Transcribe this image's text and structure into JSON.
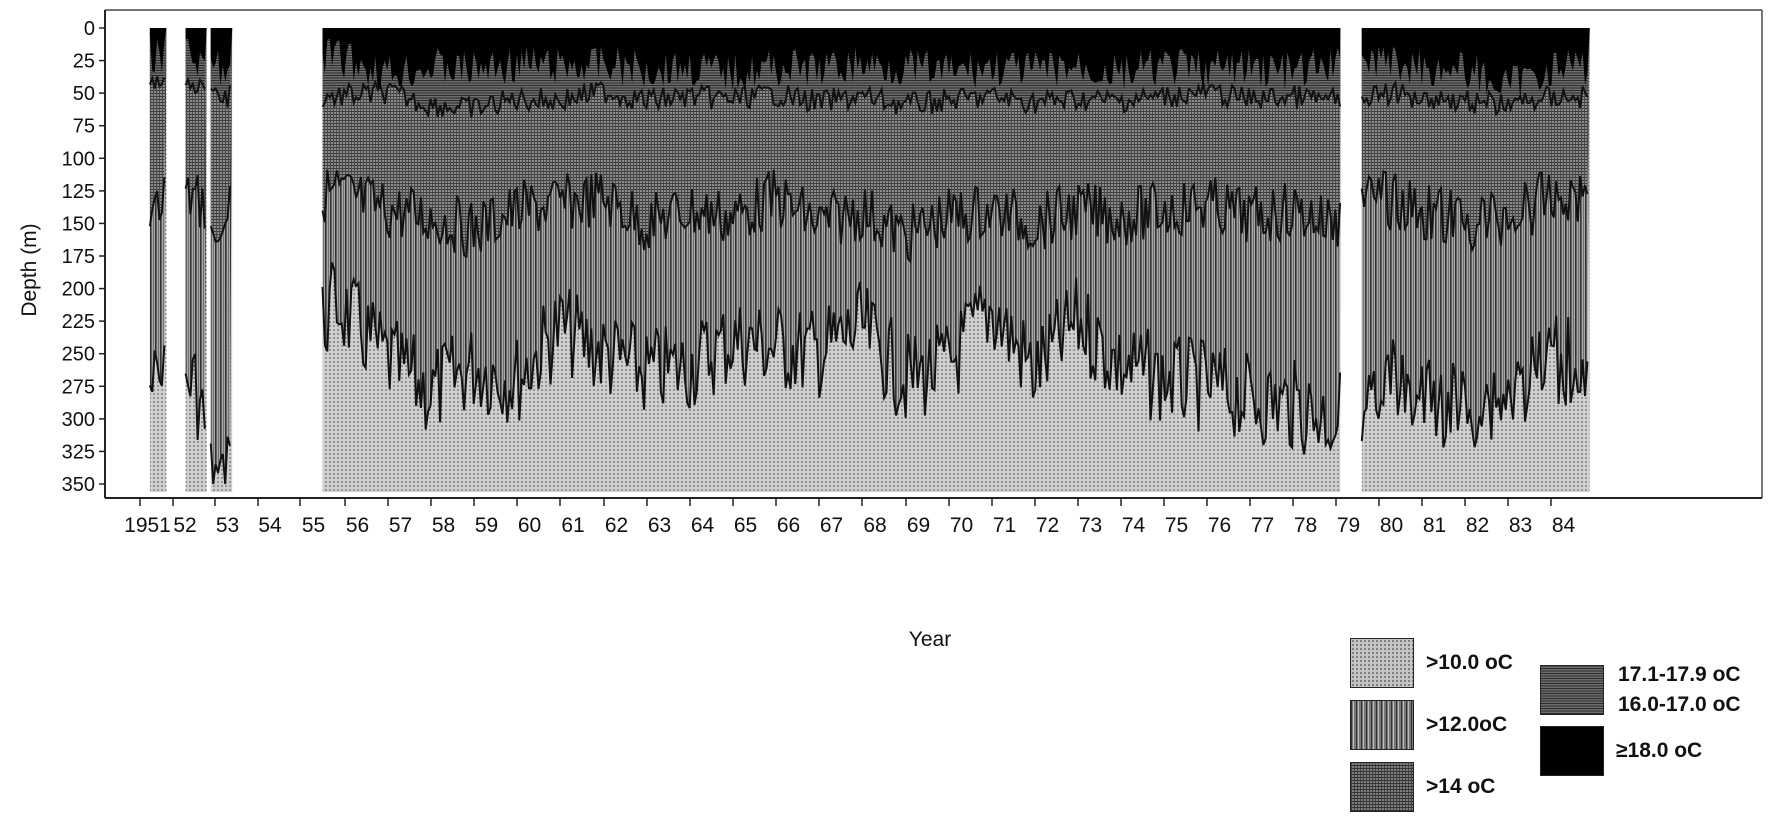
{
  "chart_data": {
    "type": "heatmap",
    "title": "",
    "xlabel": "Year",
    "ylabel": "Depth (m)",
    "ylim": [
      350,
      0
    ],
    "y_ticks": [
      "0",
      "25",
      "50",
      "75",
      "100",
      "125",
      "150",
      "175",
      "200",
      "225",
      "250",
      "275",
      "300",
      "325",
      "350"
    ],
    "x_tick_labels": [
      "1951",
      "52",
      "53",
      "54",
      "55",
      "56",
      "57",
      "58",
      "59",
      "60",
      "61",
      "62",
      "63",
      "64",
      "65",
      "66",
      "67",
      "68",
      "69",
      "70",
      "71",
      "72",
      "73",
      "74",
      "75",
      "76",
      "77",
      "78",
      "79",
      "80",
      "81",
      "82",
      "83",
      "84"
    ],
    "data_coverage": [
      {
        "from": 1951.3,
        "to": 1951.8
      },
      {
        "from": 1952.3,
        "to": 1952.8
      },
      {
        "from": 1952.9,
        "to": 1953.4
      },
      {
        "from": 1955.5,
        "to": 1979.1
      },
      {
        "from": 1979.6,
        "to": 1984.9
      }
    ],
    "isotherm_depths": {
      "years": [
        1951.5,
        1952.5,
        1953.1,
        1955.8,
        1957,
        1958,
        1959,
        1960,
        1961,
        1962,
        1963,
        1964,
        1965,
        1966,
        1967,
        1968,
        1969,
        1970,
        1971,
        1972,
        1973,
        1974,
        1975,
        1976,
        1977,
        1978,
        1979,
        1980,
        1981,
        1982,
        1983,
        1984
      ],
      "t18": [
        20,
        22,
        30,
        22,
        35,
        30,
        32,
        28,
        30,
        28,
        32,
        30,
        35,
        30,
        32,
        28,
        30,
        34,
        30,
        33,
        30,
        35,
        30,
        32,
        30,
        34,
        30,
        25,
        30,
        32,
        45,
        30
      ],
      "t14": [
        70,
        72,
        85,
        85,
        80,
        95,
        100,
        88,
        90,
        78,
        90,
        85,
        88,
        82,
        92,
        85,
        95,
        90,
        85,
        92,
        88,
        90,
        85,
        80,
        88,
        85,
        90,
        80,
        85,
        90,
        95,
        85
      ],
      "t12": [
        135,
        130,
        145,
        125,
        140,
        145,
        155,
        140,
        135,
        130,
        150,
        140,
        145,
        130,
        150,
        140,
        160,
        145,
        140,
        150,
        140,
        145,
        140,
        135,
        145,
        140,
        150,
        130,
        140,
        150,
        145,
        130
      ],
      "t10": [
        275,
        270,
        350,
        210,
        255,
        280,
        260,
        270,
        230,
        250,
        265,
        260,
        240,
        245,
        250,
        230,
        270,
        260,
        215,
        265,
        225,
        260,
        270,
        275,
        285,
        290,
        300,
        270,
        285,
        290,
        280,
        255
      ]
    },
    "legend": [
      {
        "label": ">10.0 oC",
        "pattern": "dots"
      },
      {
        "label": ">12.0oC",
        "pattern": "vertical-lines"
      },
      {
        "label": ">14 oC",
        "pattern": "cross-hatch"
      },
      {
        "label": "17.1-17.9 oC",
        "pattern": "zigzag"
      },
      {
        "label": "16.0-17.0 oC",
        "pattern": "dense-lines"
      },
      {
        "label": "≥18.0 oC",
        "pattern": "solid-black"
      }
    ],
    "colors": {
      "t10": "#c4c4c4",
      "t12": "#9a9a9a",
      "t14": "#7c7c7c",
      "t16": "#6a6a6a",
      "t18": "#000000"
    }
  }
}
